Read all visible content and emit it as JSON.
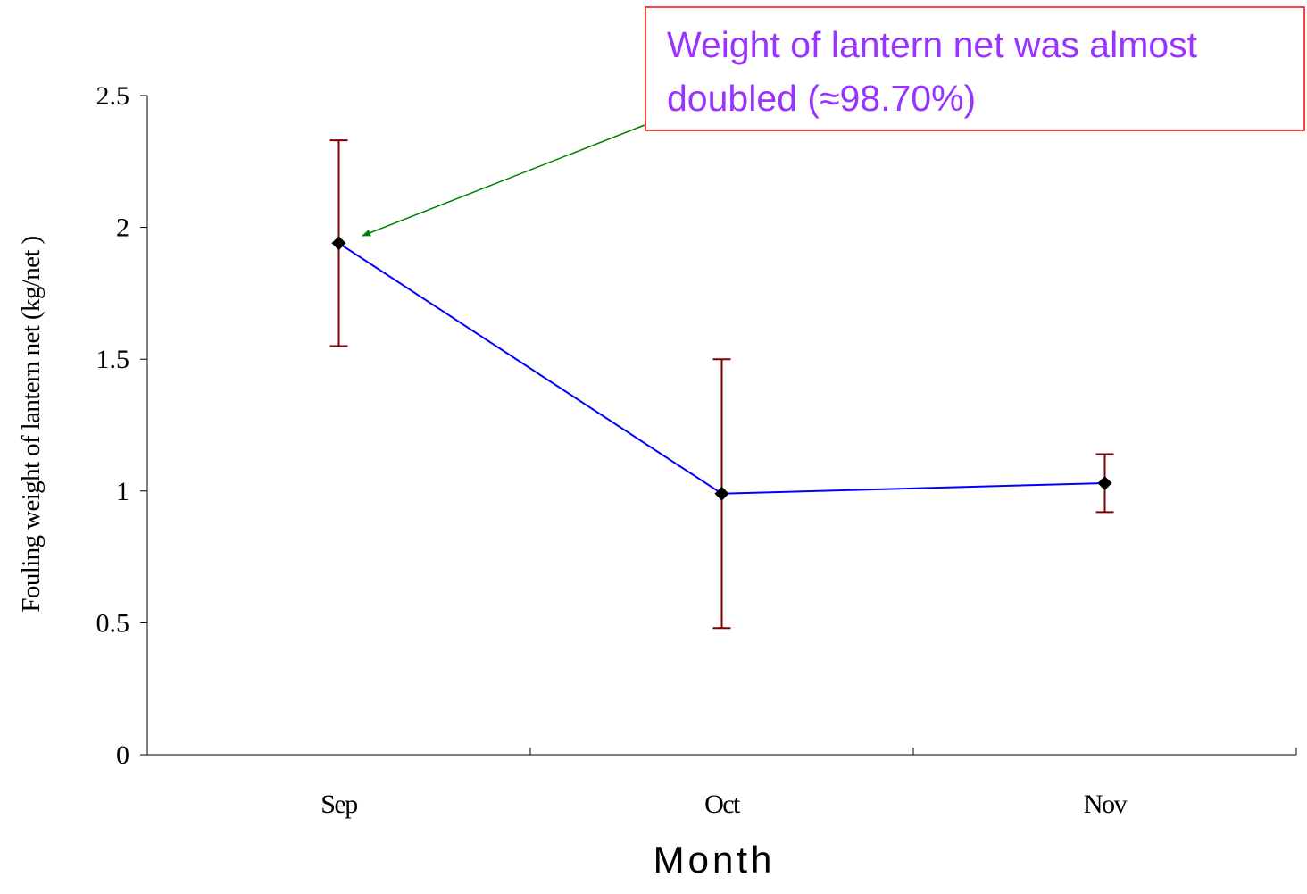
{
  "chart_data": {
    "type": "line",
    "xlabel": "Month",
    "ylabel": "Fouling weight of lantern net  (kg/net )",
    "categories": [
      "Sep",
      "Oct",
      "Nov"
    ],
    "ylim": [
      0,
      2.5
    ],
    "yticks": [
      "0",
      "0.5",
      "1",
      "1.5",
      "2",
      "2.5"
    ],
    "grid": false,
    "legend": "none",
    "series": [
      {
        "values": [
          1.94,
          0.99,
          1.03
        ],
        "error_low": [
          1.55,
          0.48,
          0.92
        ],
        "error_high": [
          2.33,
          1.5,
          1.14
        ],
        "line_color": "#0000ff",
        "marker": "diamond",
        "marker_color": "#000000",
        "error_color": "#800000"
      }
    ],
    "annotation": {
      "lines": [
        "Weight of lantern net was almost",
        "doubled (≈98.70%)"
      ],
      "text_color": "#9933ff",
      "border_color": "#ff0000",
      "arrow_color": "#008000",
      "points_to": "Sep"
    }
  }
}
